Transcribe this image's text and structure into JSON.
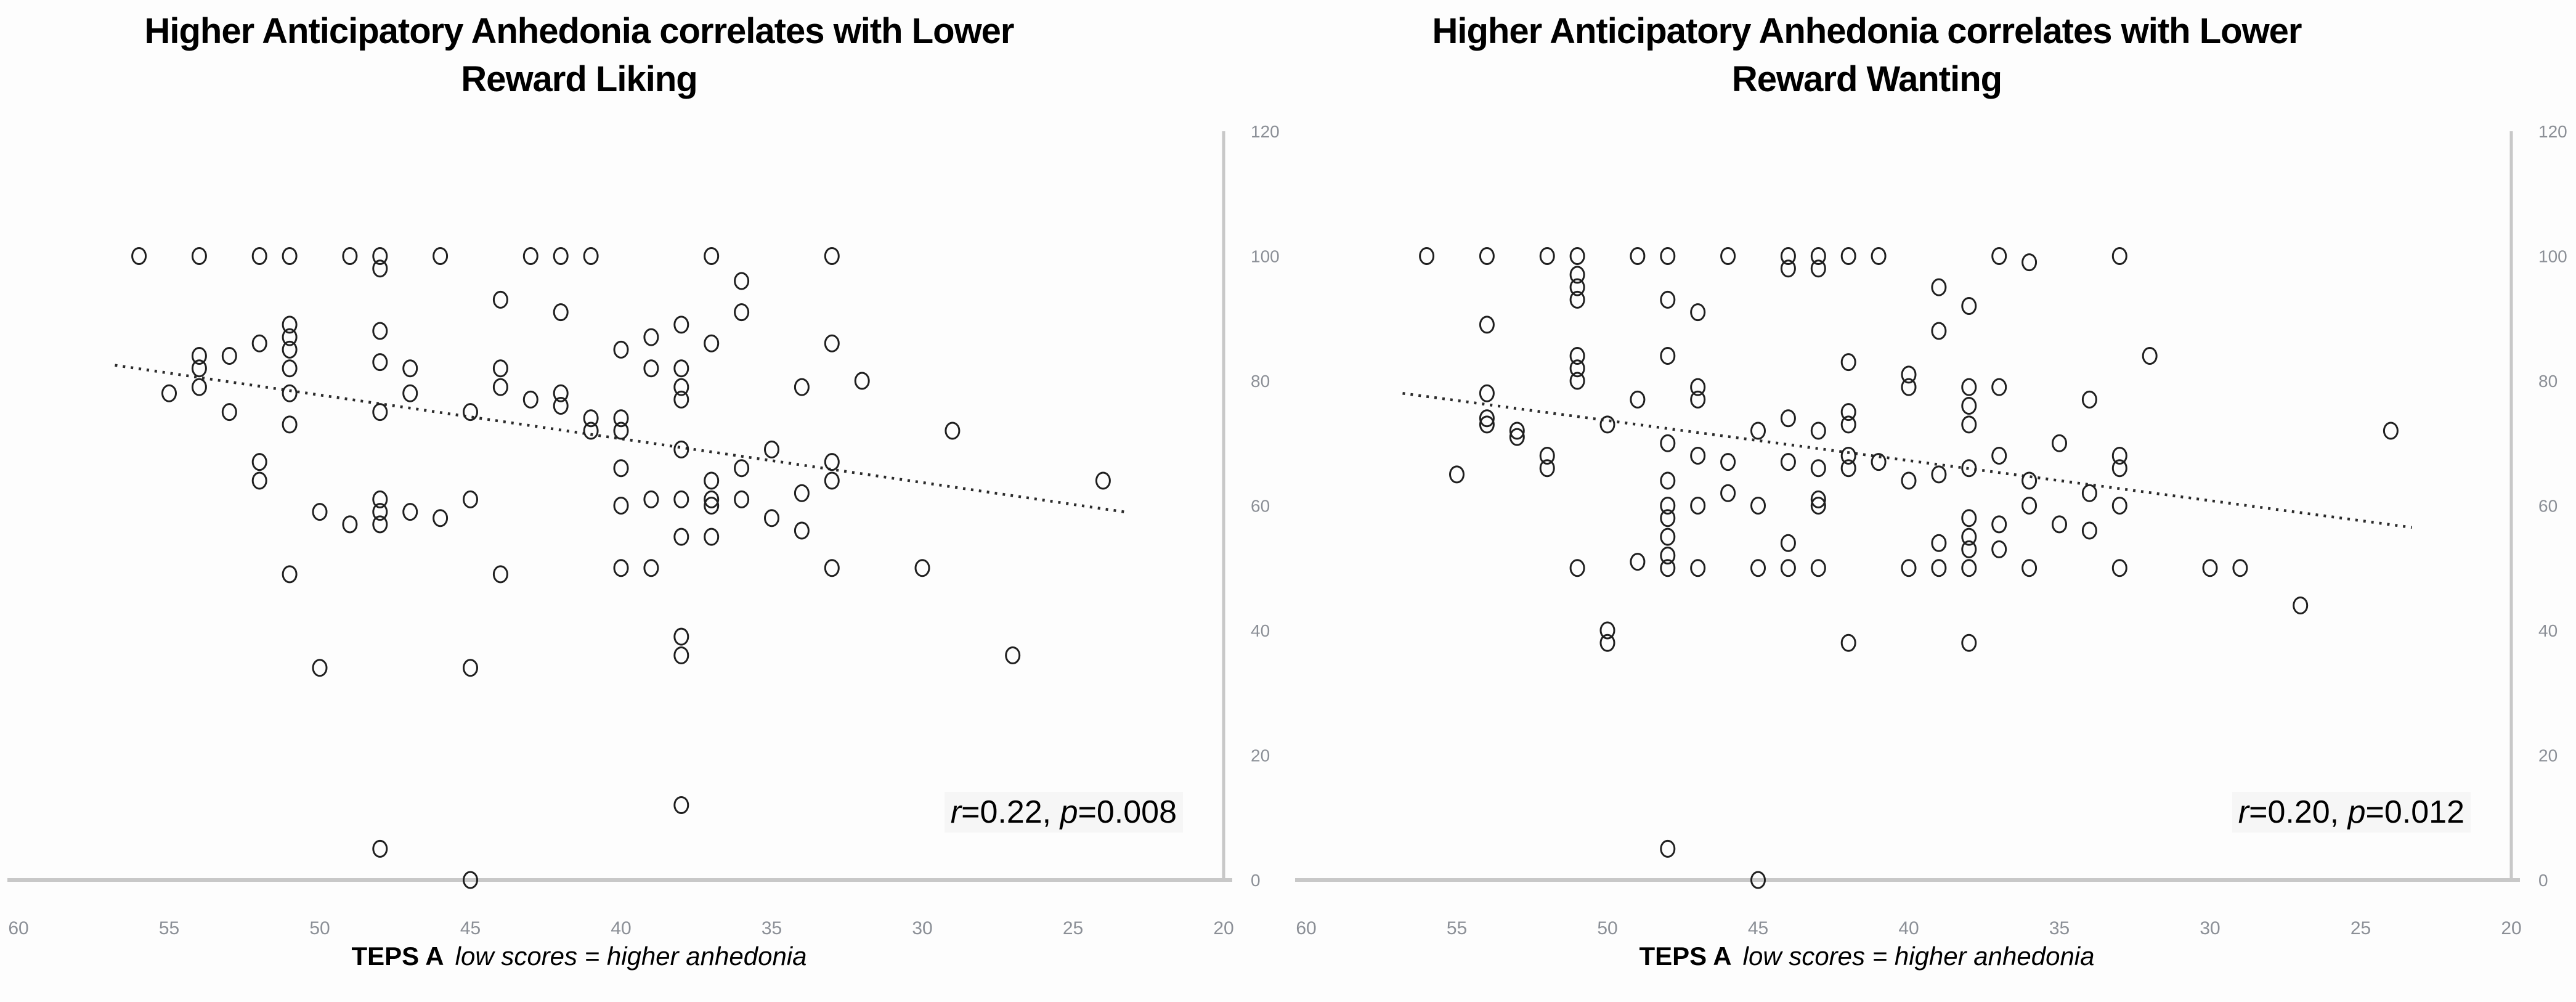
{
  "page": {
    "background": "#fdfdfd"
  },
  "colors": {
    "axis_line": "#c8c8c8",
    "tick_label": "#8b8f96",
    "point_stroke": "#1f1f1f",
    "trend_line": "#2b2b2b",
    "title_text": "#000000",
    "annotation_text": "#000000",
    "annotation_bg": "#f6f6f6"
  },
  "chart_data": [
    {
      "type": "scatter",
      "title_line1": "Higher Anticipatory Anhedonia correlates with Lower",
      "title_line2": "Reward Liking",
      "xlabel_bold": "TEPS A",
      "xlabel_italic": "low scores = higher anhedonia",
      "annotation": {
        "r_label": "r",
        "r_value": "=0.22, ",
        "p_label": "p",
        "p_value": "=0.008"
      },
      "r": 0.22,
      "p": 0.008,
      "x_reversed": true,
      "xlim": [
        60,
        20
      ],
      "ylim": [
        0,
        120
      ],
      "x_ticks": [
        60,
        55,
        50,
        45,
        40,
        35,
        30,
        25,
        20
      ],
      "y_ticks": [
        0,
        20,
        40,
        60,
        80,
        100,
        120
      ],
      "y_axis_side": "right",
      "grid": false,
      "legend": false,
      "trendline": {
        "x1": 56.8,
        "y1": 82.5,
        "x2": 23.3,
        "y2": 59,
        "style": "dotted"
      },
      "points": [
        [
          56,
          100
        ],
        [
          54,
          100
        ],
        [
          52,
          100
        ],
        [
          51,
          100
        ],
        [
          49,
          100
        ],
        [
          48,
          100
        ],
        [
          48,
          98
        ],
        [
          46,
          100
        ],
        [
          43,
          100
        ],
        [
          42,
          100
        ],
        [
          41,
          100
        ],
        [
          37,
          100
        ],
        [
          33,
          100
        ],
        [
          36,
          96
        ],
        [
          44,
          93
        ],
        [
          42,
          91
        ],
        [
          36,
          91
        ],
        [
          51,
          89
        ],
        [
          38,
          89
        ],
        [
          48,
          88
        ],
        [
          51,
          87
        ],
        [
          39,
          87
        ],
        [
          37,
          86
        ],
        [
          52,
          86
        ],
        [
          33,
          86
        ],
        [
          51,
          85
        ],
        [
          40,
          85
        ],
        [
          53,
          84
        ],
        [
          54,
          84
        ],
        [
          48,
          83
        ],
        [
          54,
          82
        ],
        [
          51,
          82
        ],
        [
          39,
          82
        ],
        [
          38,
          82
        ],
        [
          47,
          82
        ],
        [
          44,
          82
        ],
        [
          32,
          80
        ],
        [
          54,
          79
        ],
        [
          51,
          78
        ],
        [
          34,
          79
        ],
        [
          44,
          79
        ],
        [
          38,
          79
        ],
        [
          55,
          78
        ],
        [
          47,
          78
        ],
        [
          38,
          77
        ],
        [
          43,
          77
        ],
        [
          42,
          78
        ],
        [
          42,
          76
        ],
        [
          53,
          75
        ],
        [
          48,
          75
        ],
        [
          45,
          75
        ],
        [
          41,
          74
        ],
        [
          40,
          74
        ],
        [
          51,
          73
        ],
        [
          40,
          72
        ],
        [
          41,
          72
        ],
        [
          29,
          72
        ],
        [
          38,
          69
        ],
        [
          35,
          69
        ],
        [
          52,
          67
        ],
        [
          40,
          66
        ],
        [
          33,
          67
        ],
        [
          36,
          66
        ],
        [
          37,
          64
        ],
        [
          33,
          64
        ],
        [
          24,
          64
        ],
        [
          34,
          62
        ],
        [
          52,
          64
        ],
        [
          39,
          61
        ],
        [
          38,
          61
        ],
        [
          37,
          61
        ],
        [
          36,
          61
        ],
        [
          37,
          60
        ],
        [
          40,
          60
        ],
        [
          45,
          61
        ],
        [
          48,
          61
        ],
        [
          48,
          59
        ],
        [
          47,
          59
        ],
        [
          50,
          59
        ],
        [
          35,
          58
        ],
        [
          34,
          56
        ],
        [
          38,
          55
        ],
        [
          37,
          55
        ],
        [
          49,
          57
        ],
        [
          48,
          57
        ],
        [
          46,
          58
        ],
        [
          51,
          49
        ],
        [
          44,
          49
        ],
        [
          40,
          50
        ],
        [
          39,
          50
        ],
        [
          33,
          50
        ],
        [
          30,
          50
        ],
        [
          50,
          34
        ],
        [
          45,
          34
        ],
        [
          38,
          39
        ],
        [
          38,
          36
        ],
        [
          27,
          36
        ],
        [
          38,
          12
        ],
        [
          48,
          5
        ],
        [
          45,
          0
        ]
      ]
    },
    {
      "type": "scatter",
      "title_line1": "Higher Anticipatory Anhedonia correlates with Lower",
      "title_line2": "Reward Wanting",
      "xlabel_bold": "TEPS A",
      "xlabel_italic": "low scores = higher anhedonia",
      "annotation": {
        "r_label": "r",
        "r_value": "=0.20, ",
        "p_label": "p",
        "p_value": "=0.012"
      },
      "r": 0.2,
      "p": 0.012,
      "x_reversed": true,
      "xlim": [
        60,
        20
      ],
      "ylim": [
        0,
        120
      ],
      "x_ticks": [
        60,
        55,
        50,
        45,
        40,
        35,
        30,
        25,
        20
      ],
      "y_ticks": [
        0,
        20,
        40,
        60,
        80,
        100,
        120
      ],
      "y_axis_side": "right",
      "grid": false,
      "legend": false,
      "trendline": {
        "x1": 56.8,
        "y1": 78,
        "x2": 23.3,
        "y2": 56.5,
        "style": "dotted"
      },
      "points": [
        [
          56,
          100
        ],
        [
          54,
          100
        ],
        [
          52,
          100
        ],
        [
          51,
          100
        ],
        [
          49,
          100
        ],
        [
          48,
          100
        ],
        [
          46,
          100
        ],
        [
          44,
          100
        ],
        [
          44,
          98
        ],
        [
          43,
          100
        ],
        [
          43,
          98
        ],
        [
          42,
          100
        ],
        [
          41,
          100
        ],
        [
          37,
          100
        ],
        [
          36,
          99
        ],
        [
          33,
          100
        ],
        [
          51,
          97
        ],
        [
          39,
          95
        ],
        [
          51,
          95
        ],
        [
          51,
          93
        ],
        [
          48,
          93
        ],
        [
          38,
          92
        ],
        [
          47,
          91
        ],
        [
          54,
          89
        ],
        [
          39,
          88
        ],
        [
          51,
          84
        ],
        [
          48,
          84
        ],
        [
          32,
          84
        ],
        [
          42,
          83
        ],
        [
          51,
          82
        ],
        [
          51,
          80
        ],
        [
          40,
          81
        ],
        [
          40,
          79
        ],
        [
          54,
          78
        ],
        [
          38,
          79
        ],
        [
          37,
          79
        ],
        [
          47,
          79
        ],
        [
          49,
          77
        ],
        [
          47,
          77
        ],
        [
          34,
          77
        ],
        [
          38,
          76
        ],
        [
          54,
          74
        ],
        [
          44,
          74
        ],
        [
          54,
          73
        ],
        [
          42,
          75
        ],
        [
          42,
          73
        ],
        [
          50,
          73
        ],
        [
          38,
          73
        ],
        [
          53,
          72
        ],
        [
          53,
          71
        ],
        [
          45,
          72
        ],
        [
          43,
          72
        ],
        [
          24,
          72
        ],
        [
          48,
          70
        ],
        [
          35,
          70
        ],
        [
          52,
          68
        ],
        [
          42,
          68
        ],
        [
          47,
          68
        ],
        [
          37,
          68
        ],
        [
          33,
          68
        ],
        [
          46,
          67
        ],
        [
          44,
          67
        ],
        [
          41,
          67
        ],
        [
          43,
          66
        ],
        [
          42,
          66
        ],
        [
          33,
          66
        ],
        [
          38,
          66
        ],
        [
          52,
          66
        ],
        [
          39,
          65
        ],
        [
          55,
          65
        ],
        [
          48,
          64
        ],
        [
          40,
          64
        ],
        [
          36,
          64
        ],
        [
          46,
          62
        ],
        [
          34,
          62
        ],
        [
          43,
          61
        ],
        [
          43,
          60
        ],
        [
          48,
          60
        ],
        [
          47,
          60
        ],
        [
          45,
          60
        ],
        [
          36,
          60
        ],
        [
          33,
          60
        ],
        [
          48,
          58
        ],
        [
          38,
          58
        ],
        [
          37,
          57
        ],
        [
          35,
          57
        ],
        [
          34,
          56
        ],
        [
          48,
          55
        ],
        [
          38,
          55
        ],
        [
          39,
          54
        ],
        [
          44,
          54
        ],
        [
          38,
          53
        ],
        [
          37,
          53
        ],
        [
          48,
          52
        ],
        [
          49,
          51
        ],
        [
          51,
          50
        ],
        [
          48,
          50
        ],
        [
          47,
          50
        ],
        [
          45,
          50
        ],
        [
          44,
          50
        ],
        [
          43,
          50
        ],
        [
          40,
          50
        ],
        [
          39,
          50
        ],
        [
          38,
          50
        ],
        [
          36,
          50
        ],
        [
          33,
          50
        ],
        [
          30,
          50
        ],
        [
          29,
          50
        ],
        [
          27,
          44
        ],
        [
          50,
          40
        ],
        [
          50,
          38
        ],
        [
          42,
          38
        ],
        [
          38,
          38
        ],
        [
          48,
          5
        ],
        [
          45,
          0
        ]
      ]
    }
  ]
}
